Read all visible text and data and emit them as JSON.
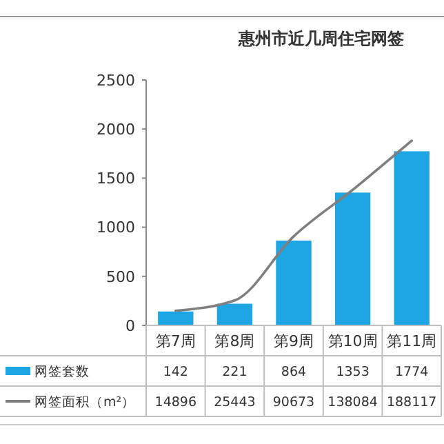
{
  "chart_data": {
    "type": "bar",
    "title": "惠州市近几周住宅网签",
    "categories": [
      "第7周",
      "第8周",
      "第9周",
      "第10周",
      "第11周"
    ],
    "series": [
      {
        "name": "网签套数",
        "color": "#1ea5e3",
        "values": [
          142,
          221,
          864,
          1353,
          1774
        ]
      },
      {
        "name": "网签面积（m²）",
        "type": "line",
        "axis": "y2",
        "color": "#7f7f7f",
        "values": [
          14896,
          25443,
          90673,
          138084,
          188117
        ]
      }
    ],
    "ylim": [
      0,
      2500
    ],
    "yticks": [
      0,
      500,
      1000,
      1500,
      2000,
      2500
    ],
    "y2lim": [
      0,
      250000
    ],
    "data_labels": true,
    "legend": "bottom left"
  }
}
